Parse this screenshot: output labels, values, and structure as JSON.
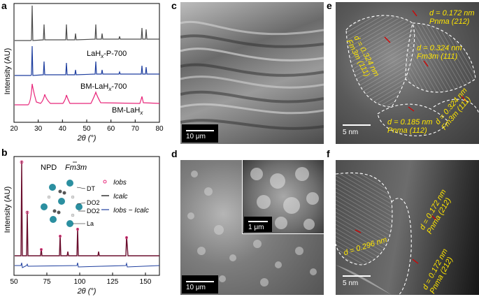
{
  "figure": {
    "letters": [
      "a",
      "b",
      "c",
      "d",
      "e",
      "f"
    ],
    "colors": {
      "gray": "#4d4d4d",
      "blue": "#1f3f9f",
      "pink": "#e8267a",
      "yellow": "#ffe600",
      "red": "#d60000"
    }
  },
  "panel_a": {
    "ylabel": "Intensity (AU)",
    "xlabel": "2θ (°)",
    "x_ticks": [
      "20",
      "30",
      "40",
      "50",
      "60",
      "70",
      "80"
    ],
    "series_labels": [
      "LaHx-P-700",
      "BM-LaHx-700",
      "BM-LaHx"
    ],
    "label_main": [
      "LaH",
      "LaH",
      "BM-LaH"
    ],
    "label_sub": [
      "x",
      "x",
      "x"
    ],
    "label_tail": [
      "-P-700",
      "-700",
      ""
    ],
    "label_pre": [
      "",
      "BM-",
      ""
    ]
  },
  "panel_b": {
    "ylabel": "Intensity (AU)",
    "xlabel": "2θ (°)",
    "x_ticks": [
      "50",
      "75",
      "100",
      "125",
      "150"
    ],
    "npd": "NPD",
    "space_group": "Fm3m",
    "legend": [
      "Iobs",
      "Icalc",
      "Iobs − Icalc"
    ],
    "atoms": [
      "DT",
      "DO2",
      "DO2",
      "La"
    ]
  },
  "panel_c": {
    "scale": "10 μm"
  },
  "panel_d": {
    "scale": "10 μm",
    "inset_scale": "1 μm"
  },
  "panel_e": {
    "scale": "5 nm",
    "annotations": [
      {
        "d": "d = 0.172 nm",
        "phase": "Pnma (212)"
      },
      {
        "d": "d = 0.324 nm",
        "phase": "Fm3m (111)"
      },
      {
        "d": "d = 0.324 nm",
        "phase": "Fm3m (111)"
      },
      {
        "d": "d = 0.324 nm",
        "phase": "Fm3m (111)"
      },
      {
        "d": "d = 0.185 nm",
        "phase": "Pnma (112)"
      }
    ]
  },
  "panel_f": {
    "scale": "5 nm",
    "annotations": [
      {
        "d": "d = 0.296 nm",
        "phase": ""
      },
      {
        "d": "d = 0.172 nm",
        "phase": "Pnma (212)"
      },
      {
        "d": "d = 0.172 nm",
        "phase": "Pnma (212)"
      }
    ]
  }
}
